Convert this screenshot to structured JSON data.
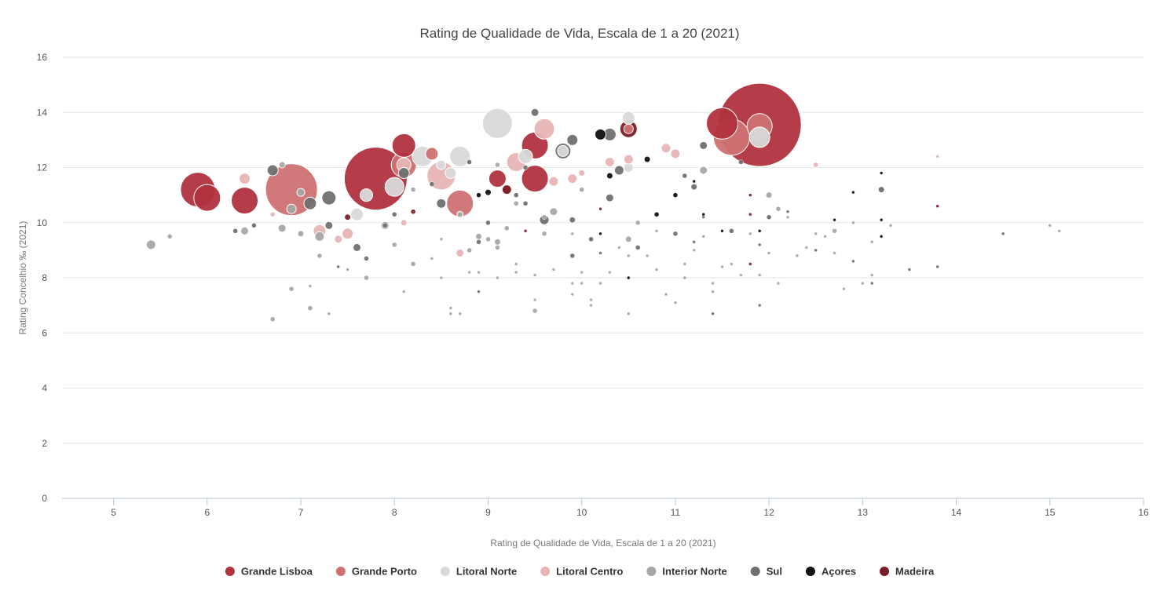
{
  "chart_data": {
    "type": "scatter",
    "subtype": "bubble",
    "title": "Rating de Qualidade de Vida, Escala de 1 a 20 (2021)",
    "xlabel": "Rating de Qualidade de Vida, Escala de 1 a 20 (2021)",
    "ylabel": "Rating Concelhio ‰ (2021)",
    "xlim": [
      4.45,
      16
    ],
    "ylim": [
      0,
      16
    ],
    "xticks": [
      5,
      6,
      7,
      8,
      9,
      10,
      11,
      12,
      13,
      14,
      15,
      16
    ],
    "yticks": [
      0,
      2,
      4,
      6,
      8,
      10,
      12,
      14,
      16
    ],
    "legend_position": "bottom",
    "series": [
      {
        "name": "Grande Lisboa",
        "color": "#b1323f",
        "points": [
          [
            5.9,
            11.2,
            22
          ],
          [
            6.0,
            10.9,
            17
          ],
          [
            6.4,
            10.8,
            17
          ],
          [
            7.8,
            11.6,
            40
          ],
          [
            8.1,
            12.8,
            15
          ],
          [
            9.5,
            12.8,
            17
          ],
          [
            9.5,
            11.6,
            17
          ],
          [
            9.1,
            11.6,
            11
          ],
          [
            11.5,
            13.6,
            20
          ],
          [
            11.9,
            13.55,
            53
          ]
        ]
      },
      {
        "name": "Grande Porto",
        "color": "#cf7273",
        "points": [
          [
            6.9,
            11.2,
            33
          ],
          [
            8.1,
            12.1,
            16
          ],
          [
            8.4,
            12.5,
            8
          ],
          [
            8.7,
            10.7,
            17
          ],
          [
            9.2,
            11.2,
            7
          ],
          [
            11.6,
            13.1,
            23
          ],
          [
            11.9,
            13.5,
            16
          ],
          [
            10.5,
            13.4,
            6
          ]
        ]
      },
      {
        "name": "Litoral Norte",
        "color": "#d9d9d9",
        "points": [
          [
            9.1,
            13.6,
            19
          ],
          [
            8.7,
            12.4,
            13
          ],
          [
            8.3,
            12.4,
            13
          ],
          [
            8.0,
            11.3,
            12
          ],
          [
            9.4,
            12.4,
            9
          ],
          [
            7.6,
            10.3,
            8
          ],
          [
            7.7,
            11.0,
            8
          ],
          [
            8.6,
            11.8,
            7
          ],
          [
            10.5,
            13.8,
            8
          ],
          [
            10.5,
            12.0,
            6
          ],
          [
            11.9,
            13.1,
            13
          ],
          [
            9.8,
            12.6,
            7
          ],
          [
            8.5,
            12.1,
            6
          ]
        ]
      },
      {
        "name": "Litoral Centro",
        "color": "#e8b4b5",
        "points": [
          [
            8.5,
            11.7,
            18
          ],
          [
            9.6,
            13.4,
            13
          ],
          [
            9.3,
            12.2,
            12
          ],
          [
            8.1,
            12.1,
            9
          ],
          [
            7.2,
            9.7,
            8
          ],
          [
            7.5,
            9.6,
            7
          ],
          [
            6.4,
            11.6,
            7
          ],
          [
            9.9,
            11.6,
            6
          ],
          [
            10.3,
            12.2,
            6
          ],
          [
            10.5,
            12.3,
            6
          ],
          [
            10.9,
            12.7,
            6
          ],
          [
            11.0,
            12.5,
            6
          ],
          [
            12.5,
            12.1,
            3
          ],
          [
            13.8,
            12.4,
            2
          ],
          [
            8.7,
            8.9,
            5
          ],
          [
            7.4,
            9.4,
            5
          ],
          [
            8.1,
            10.0,
            4
          ],
          [
            10.0,
            11.8,
            4
          ],
          [
            9.7,
            11.5,
            6
          ],
          [
            6.7,
            10.3,
            3
          ]
        ]
      },
      {
        "name": "Interior Norte",
        "color": "#a6a6a6",
        "points": [
          [
            5.4,
            9.2,
            6
          ],
          [
            5.6,
            9.5,
            3
          ],
          [
            6.4,
            9.7,
            5
          ],
          [
            6.8,
            9.8,
            5
          ],
          [
            6.9,
            7.6,
            3
          ],
          [
            6.7,
            6.5,
            3
          ],
          [
            7.1,
            7.7,
            2
          ],
          [
            7.1,
            6.9,
            3
          ],
          [
            7.3,
            6.7,
            2
          ],
          [
            7.2,
            8.8,
            3
          ],
          [
            7.7,
            8.0,
            3
          ],
          [
            7.9,
            9.9,
            5
          ],
          [
            8.0,
            9.2,
            3
          ],
          [
            8.1,
            7.5,
            2
          ],
          [
            8.2,
            8.5,
            3
          ],
          [
            8.5,
            8.0,
            2
          ],
          [
            8.6,
            6.9,
            2
          ],
          [
            8.6,
            6.7,
            2
          ],
          [
            8.7,
            6.7,
            2
          ],
          [
            8.8,
            8.2,
            2
          ],
          [
            8.9,
            8.2,
            2
          ],
          [
            9.1,
            9.1,
            3
          ],
          [
            9.1,
            8.0,
            2
          ],
          [
            9.3,
            8.2,
            2
          ],
          [
            9.3,
            8.5,
            2
          ],
          [
            9.5,
            8.1,
            2
          ],
          [
            9.5,
            7.2,
            2
          ],
          [
            9.5,
            6.8,
            3
          ],
          [
            9.7,
            8.3,
            2
          ],
          [
            9.9,
            7.8,
            2
          ],
          [
            9.9,
            7.4,
            2
          ],
          [
            10.0,
            7.8,
            2
          ],
          [
            10.0,
            8.2,
            2
          ],
          [
            10.1,
            7.2,
            2
          ],
          [
            10.1,
            7.0,
            2
          ],
          [
            10.2,
            7.8,
            2
          ],
          [
            10.3,
            8.2,
            2
          ],
          [
            10.5,
            8.8,
            2
          ],
          [
            10.5,
            6.7,
            2
          ],
          [
            10.6,
            10.0,
            3
          ],
          [
            10.8,
            8.3,
            2
          ],
          [
            10.9,
            7.4,
            2
          ],
          [
            11.0,
            7.1,
            2
          ],
          [
            11.1,
            8.5,
            2
          ],
          [
            11.2,
            9.0,
            2
          ],
          [
            11.3,
            9.5,
            2
          ],
          [
            11.4,
            7.8,
            2
          ],
          [
            11.4,
            7.5,
            2
          ],
          [
            11.5,
            8.4,
            2
          ],
          [
            11.6,
            8.5,
            2
          ],
          [
            11.7,
            8.1,
            2
          ],
          [
            11.9,
            8.1,
            2
          ],
          [
            12.0,
            8.9,
            2
          ],
          [
            12.1,
            7.8,
            2
          ],
          [
            12.2,
            10.2,
            2
          ],
          [
            12.3,
            8.8,
            2
          ],
          [
            12.4,
            9.1,
            2
          ],
          [
            12.5,
            9.6,
            2
          ],
          [
            12.6,
            9.5,
            2
          ],
          [
            12.7,
            9.7,
            3
          ],
          [
            12.8,
            7.6,
            2
          ],
          [
            12.9,
            10.0,
            2
          ],
          [
            13.0,
            7.8,
            2
          ],
          [
            13.1,
            9.3,
            2
          ],
          [
            13.1,
            8.1,
            2
          ],
          [
            13.3,
            9.9,
            2
          ],
          [
            15.0,
            9.9,
            2
          ],
          [
            15.1,
            9.7,
            2
          ],
          [
            8.8,
            9.0,
            3
          ],
          [
            8.9,
            9.5,
            4
          ],
          [
            9.0,
            9.4,
            3
          ],
          [
            9.2,
            9.8,
            3
          ],
          [
            9.7,
            10.4,
            5
          ],
          [
            9.9,
            9.6,
            2
          ],
          [
            10.4,
            9.1,
            2
          ],
          [
            10.5,
            9.4,
            4
          ],
          [
            10.7,
            8.8,
            2
          ],
          [
            11.1,
            8.0,
            2
          ],
          [
            11.3,
            11.9,
            5
          ],
          [
            12.0,
            11.0,
            4
          ],
          [
            12.1,
            10.5,
            3
          ],
          [
            9.1,
            9.3,
            4
          ],
          [
            7.2,
            9.5,
            6
          ],
          [
            7.0,
            9.6,
            4
          ],
          [
            6.9,
            10.5,
            6
          ],
          [
            7.5,
            8.3,
            2
          ],
          [
            8.4,
            8.7,
            2
          ],
          [
            9.6,
            9.6,
            3
          ],
          [
            10.8,
            9.7,
            2
          ],
          [
            11.8,
            9.6,
            2
          ],
          [
            12.7,
            8.9,
            2
          ],
          [
            8.5,
            9.4,
            2
          ],
          [
            9.3,
            10.7,
            3
          ],
          [
            10.0,
            11.2,
            3
          ],
          [
            9.1,
            12.1,
            3
          ],
          [
            8.2,
            11.2,
            3
          ],
          [
            7.0,
            11.1,
            5
          ],
          [
            6.8,
            12.1,
            4
          ],
          [
            9.6,
            10.2,
            3
          ],
          [
            8.7,
            10.3,
            3
          ]
        ]
      },
      {
        "name": "Sul",
        "color": "#707070",
        "points": [
          [
            6.7,
            11.9,
            7
          ],
          [
            7.3,
            10.9,
            9
          ],
          [
            7.1,
            10.7,
            8
          ],
          [
            7.3,
            9.9,
            5
          ],
          [
            7.6,
            9.1,
            5
          ],
          [
            8.1,
            11.8,
            7
          ],
          [
            8.5,
            10.7,
            6
          ],
          [
            9.5,
            14.0,
            5
          ],
          [
            9.8,
            12.6,
            10
          ],
          [
            9.9,
            13.0,
            7
          ],
          [
            10.3,
            13.2,
            8
          ],
          [
            10.4,
            11.9,
            6
          ],
          [
            10.3,
            10.9,
            5
          ],
          [
            9.6,
            10.1,
            6
          ],
          [
            11.3,
            12.8,
            5
          ],
          [
            11.2,
            11.3,
            4
          ],
          [
            13.2,
            11.2,
            4
          ],
          [
            8.7,
            10.3,
            4
          ],
          [
            9.9,
            10.1,
            4
          ],
          [
            11.0,
            9.6,
            3
          ],
          [
            10.6,
            9.1,
            3
          ],
          [
            9.0,
            10.0,
            3
          ],
          [
            8.9,
            9.3,
            3
          ],
          [
            7.9,
            9.9,
            3
          ],
          [
            7.7,
            8.7,
            3
          ],
          [
            6.5,
            9.9,
            3
          ],
          [
            6.3,
            9.7,
            3
          ],
          [
            7.4,
            8.4,
            2
          ],
          [
            9.3,
            11.0,
            3
          ],
          [
            8.4,
            11.4,
            3
          ],
          [
            8.8,
            12.2,
            3
          ],
          [
            8.0,
            10.3,
            3
          ],
          [
            9.4,
            12.0,
            3
          ],
          [
            10.1,
            9.4,
            3
          ],
          [
            11.2,
            9.3,
            2
          ],
          [
            12.0,
            10.2,
            3
          ],
          [
            12.5,
            9.0,
            2
          ],
          [
            12.9,
            8.6,
            2
          ],
          [
            13.5,
            8.3,
            2
          ],
          [
            13.8,
            8.4,
            2
          ],
          [
            11.9,
            7.0,
            2
          ],
          [
            11.4,
            6.7,
            2
          ],
          [
            10.5,
            8.0,
            2
          ],
          [
            9.9,
            8.8,
            3
          ],
          [
            8.9,
            7.5,
            2
          ],
          [
            9.4,
            10.7,
            3
          ],
          [
            10.2,
            8.9,
            2
          ],
          [
            11.1,
            11.7,
            3
          ],
          [
            11.7,
            12.2,
            3
          ],
          [
            12.2,
            10.4,
            2
          ],
          [
            11.6,
            9.7,
            3
          ],
          [
            11.3,
            10.2,
            2
          ],
          [
            13.1,
            7.8,
            2
          ],
          [
            14.5,
            9.6,
            2
          ],
          [
            11.9,
            9.2,
            2
          ]
        ]
      },
      {
        "name": "Açores",
        "color": "#111111",
        "points": [
          [
            10.2,
            13.2,
            7
          ],
          [
            10.7,
            12.3,
            4
          ],
          [
            10.3,
            11.7,
            4
          ],
          [
            10.8,
            10.3,
            3
          ],
          [
            11.0,
            11.0,
            3
          ],
          [
            11.2,
            11.5,
            2
          ],
          [
            11.3,
            10.3,
            2
          ],
          [
            11.5,
            9.7,
            2
          ],
          [
            11.9,
            9.7,
            2
          ],
          [
            12.7,
            10.1,
            2
          ],
          [
            12.9,
            11.1,
            2
          ],
          [
            13.2,
            11.8,
            2
          ],
          [
            13.2,
            10.1,
            2
          ],
          [
            13.2,
            9.5,
            2
          ],
          [
            10.2,
            9.6,
            2
          ],
          [
            9.0,
            11.1,
            4
          ],
          [
            8.9,
            11.0,
            3
          ],
          [
            10.5,
            8.0,
            2
          ]
        ]
      },
      {
        "name": "Madeira",
        "color": "#7b1d27",
        "points": [
          [
            10.5,
            13.4,
            11
          ],
          [
            9.2,
            11.2,
            6
          ],
          [
            7.5,
            10.2,
            4
          ],
          [
            8.2,
            10.4,
            3
          ],
          [
            11.8,
            11.0,
            2
          ],
          [
            11.8,
            10.3,
            2
          ],
          [
            11.8,
            8.5,
            2
          ],
          [
            13.8,
            10.6,
            2
          ],
          [
            9.4,
            9.7,
            2
          ],
          [
            10.2,
            10.5,
            2
          ]
        ]
      }
    ]
  }
}
